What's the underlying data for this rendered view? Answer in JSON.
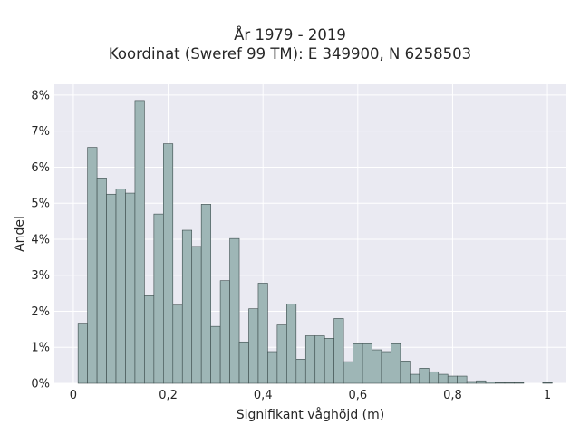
{
  "chart_data": {
    "type": "bar",
    "title": [
      "År 1979 - 2019",
      "Koordinat (Sweref 99 TM): E 349900, N 6258503"
    ],
    "xlabel": "Signifikant våghöjd (m)",
    "ylabel": "Andel",
    "xlim": [
      -0.04,
      1.04
    ],
    "ylim": [
      0,
      8.3
    ],
    "x_ticks": [
      0,
      0.2,
      0.4,
      0.6,
      0.8,
      1
    ],
    "x_tick_labels": [
      "0",
      "0,2",
      "0,4",
      "0,6",
      "0,8",
      "1"
    ],
    "y_ticks": [
      0,
      1,
      2,
      3,
      4,
      5,
      6,
      7,
      8
    ],
    "y_tick_labels": [
      "0%",
      "1%",
      "2%",
      "3%",
      "4%",
      "5%",
      "6%",
      "7%",
      "8%"
    ],
    "grid": true,
    "bin_width": 0.02,
    "bins_start": [
      0.01,
      0.03,
      0.05,
      0.07,
      0.09,
      0.11,
      0.13,
      0.15,
      0.17,
      0.19,
      0.21,
      0.23,
      0.25,
      0.27,
      0.29,
      0.31,
      0.33,
      0.35,
      0.37,
      0.39,
      0.41,
      0.43,
      0.45,
      0.47,
      0.49,
      0.51,
      0.53,
      0.55,
      0.57,
      0.59,
      0.61,
      0.63,
      0.65,
      0.67,
      0.69,
      0.71,
      0.73,
      0.75,
      0.77,
      0.79,
      0.81,
      0.83,
      0.85,
      0.87,
      0.89,
      0.91,
      0.93,
      0.95,
      0.97,
      0.99
    ],
    "values": [
      1.67,
      6.55,
      5.7,
      5.25,
      5.4,
      5.28,
      7.85,
      2.43,
      4.7,
      6.65,
      2.17,
      4.25,
      3.8,
      4.97,
      1.58,
      2.85,
      4.02,
      1.15,
      2.07,
      2.78,
      0.88,
      1.62,
      2.2,
      0.67,
      1.32,
      1.32,
      1.25,
      1.8,
      0.6,
      1.1,
      1.1,
      0.93,
      0.88,
      1.1,
      0.62,
      0.25,
      0.42,
      0.32,
      0.25,
      0.2,
      0.2,
      0.05,
      0.07,
      0.04,
      0.02,
      0.02,
      0.02,
      0,
      0,
      0.02
    ],
    "bar_color": "#9eb6b6",
    "bar_edge_color": "#3a4a4a",
    "background_color": "#eaeaf2",
    "grid_color": "#ffffff"
  }
}
